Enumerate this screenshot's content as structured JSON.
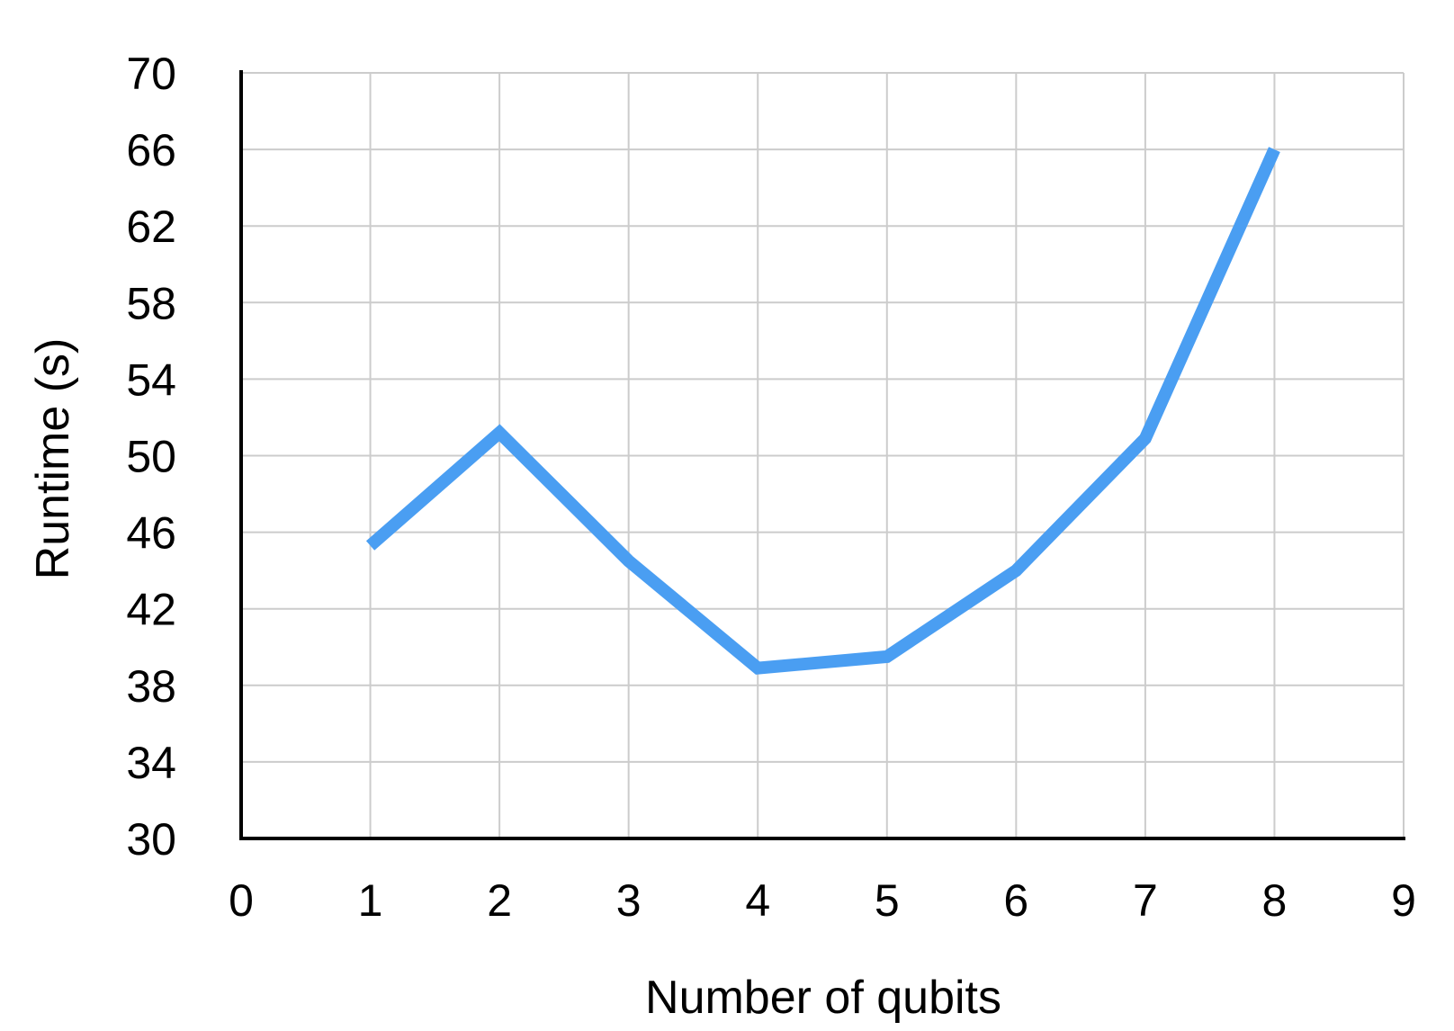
{
  "chart_data": {
    "type": "line",
    "title": "",
    "xlabel": "Number of qubits",
    "ylabel": "Runtime (s)",
    "xlim": [
      0,
      9
    ],
    "ylim": [
      30,
      70
    ],
    "x_ticks": [
      0,
      1,
      2,
      3,
      4,
      5,
      6,
      7,
      8,
      9
    ],
    "y_ticks": [
      30,
      34,
      38,
      42,
      46,
      50,
      54,
      58,
      62,
      66,
      70
    ],
    "grid": true,
    "legend": "none",
    "series": [
      {
        "color": "#4A9EF2",
        "x": [
          1,
          2,
          3,
          4,
          5,
          6,
          7,
          8
        ],
        "y": [
          45.3,
          51.2,
          44.5,
          38.9,
          39.5,
          44.0,
          50.9,
          66.0
        ]
      }
    ]
  }
}
